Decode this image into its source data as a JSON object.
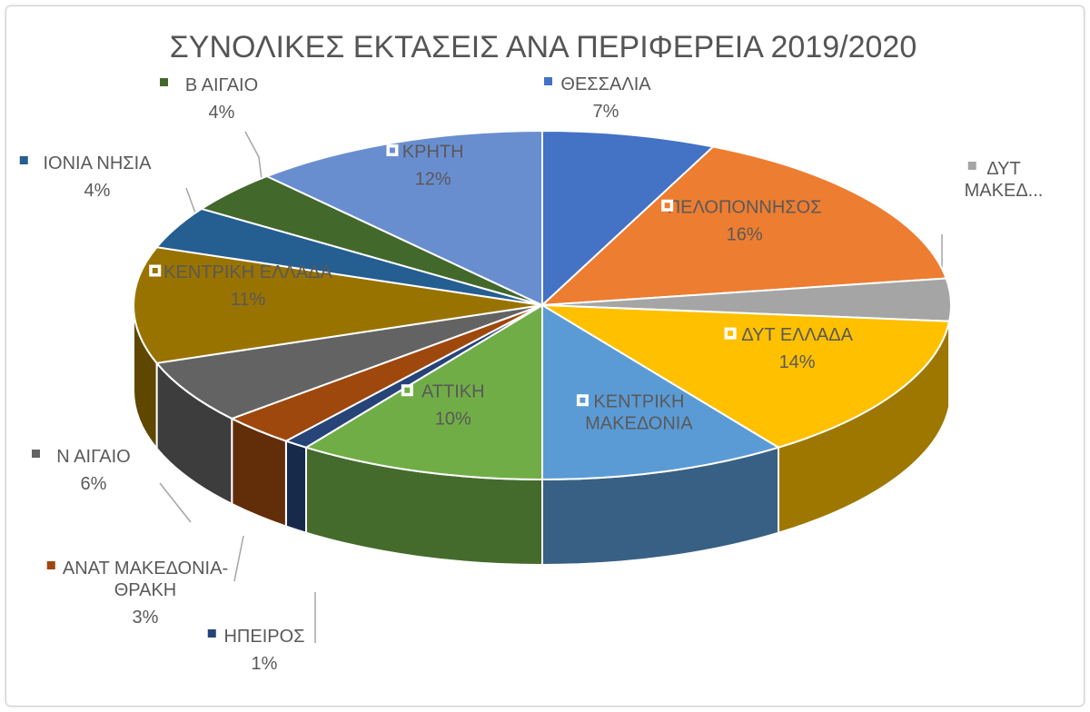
{
  "chart_data": {
    "type": "pie",
    "style": "3d-exploded",
    "title": "ΣΥΝΟΛΙΚΕΣ ΕΚΤΑΣΕΙΣ ΑΝΑ ΠΕΡΙΦΕΡΕΙΑ  2019/2020",
    "slices": [
      {
        "name": "ΘΕΣΣΑΛΙΑ",
        "display_name": [
          "ΘΕΣΣΑΛΙΑ"
        ],
        "value": 7,
        "label": "7%",
        "color": "#4472C4"
      },
      {
        "name": "ΠΕΛΟΠΟΝΝΗΣΟΣ",
        "display_name": [
          "ΠΕΛΟΠΟΝΝΗΣΟΣ"
        ],
        "value": 16,
        "label": "16%",
        "color": "#ED7D31"
      },
      {
        "name": "ΔΥΤ ΜΑΚΕΔ...",
        "display_name": [
          "ΔΥΤ",
          "ΜΑΚΕΔ..."
        ],
        "value": 4,
        "label": "",
        "color": "#A5A5A5"
      },
      {
        "name": "ΔΥΤ ΕΛΛΑΔΑ",
        "display_name": [
          "ΔΥΤ ΕΛΛΑΔΑ"
        ],
        "value": 14,
        "label": "14%",
        "color": "#FFC000"
      },
      {
        "name": "ΚΕΝΤΡΙΚΗ ΜΑΚΕΔΟΝΙΑ",
        "display_name": [
          "ΚΕΝΤΡΙΚΗ",
          "ΜΑΚΕΔΟΝΙΑ"
        ],
        "value": 10,
        "label": "",
        "color": "#5B9BD5"
      },
      {
        "name": "ΑΤΤΙΚΗ",
        "display_name": [
          "ΑΤΤΙΚΗ"
        ],
        "value": 10,
        "label": "10%",
        "color": "#70AD47"
      },
      {
        "name": "ΗΠΕΙΡΟΣ",
        "display_name": [
          "ΗΠΕΙΡΟΣ"
        ],
        "value": 1,
        "label": "1%",
        "color": "#264478"
      },
      {
        "name": "ΑΝΑΤ ΜΑΚΕΔΟΝΙΑ-ΘΡΑΚΗ",
        "display_name": [
          "ΑΝΑΤ ΜΑΚΕΔΟΝΙΑ-",
          "ΘΡΑΚΗ"
        ],
        "value": 3,
        "label": "3%",
        "color": "#9E480E"
      },
      {
        "name": "Ν ΑΙΓΑΙΟ",
        "display_name": [
          "Ν ΑΙΓΑΙΟ"
        ],
        "value": 6,
        "label": "6%",
        "color": "#636363"
      },
      {
        "name": "ΚΕΝΤΡΙΚΗ ΕΛΛΑΔΑ",
        "display_name": [
          "ΚΕΝΤΡΙΚΗ ΕΛΛΑΔΑ"
        ],
        "value": 11,
        "label": "11%",
        "color": "#997300"
      },
      {
        "name": "ΙΟΝΙΑ ΝΗΣΙΑ",
        "display_name": [
          "ΙΟΝΙΑ ΝΗΣΙΑ"
        ],
        "value": 4,
        "label": "4%",
        "color": "#255E91"
      },
      {
        "name": "Β ΑΙΓΑΙΟ",
        "display_name": [
          "Β ΑΙΓΑΙΟ"
        ],
        "value": 4,
        "label": "4%",
        "color": "#43682B"
      },
      {
        "name": "ΚΡΗΤΗ",
        "display_name": [
          "ΚΡΗΤΗ"
        ],
        "value": 12,
        "label": "12%",
        "color": "#698ED0"
      }
    ]
  }
}
